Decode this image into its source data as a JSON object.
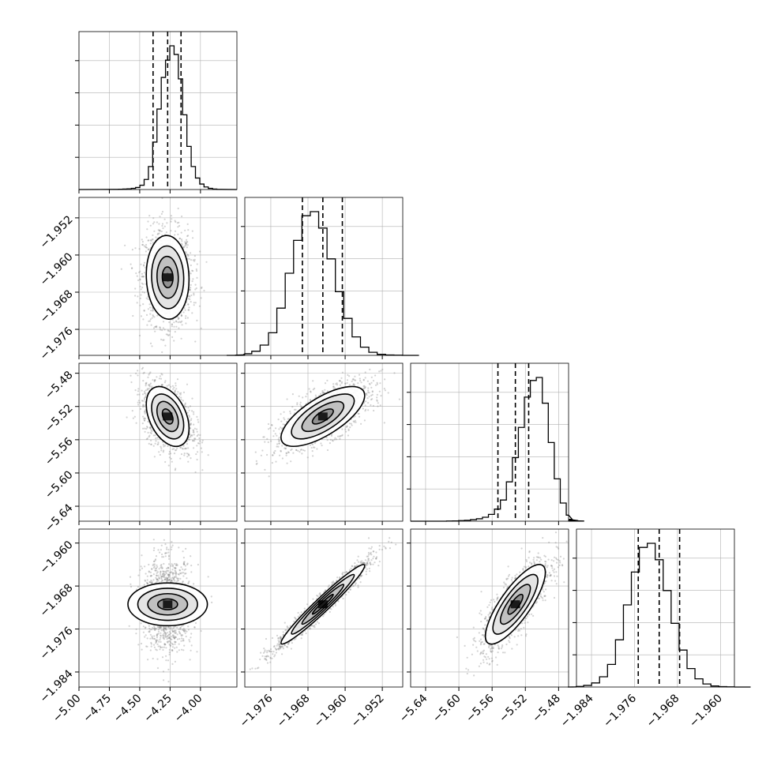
{
  "chart_data": {
    "type": "corner",
    "grid": true,
    "parameters": [
      {
        "index": 0,
        "range": [
          -5.0,
          -3.7
        ],
        "ticks": [
          -5.0,
          -4.75,
          -4.5,
          -4.25,
          -4.0
        ],
        "tick_labels": [
          "−5.00",
          "−4.75",
          "−4.50",
          "−4.25",
          "−4.00"
        ],
        "quantiles": [
          -4.39,
          -4.27,
          -4.16
        ]
      },
      {
        "index": 1,
        "range": [
          -1.9816,
          -1.9476
        ],
        "ticks": [
          -1.976,
          -1.968,
          -1.96,
          -1.952
        ],
        "tick_labels": [
          "−1.976",
          "−1.968",
          "−1.960",
          "−1.952"
        ],
        "quantiles": [
          -1.9692,
          -1.9648,
          -1.9606
        ]
      },
      {
        "index": 2,
        "range": [
          -5.658,
          -5.468
        ],
        "ticks": [
          -5.64,
          -5.6,
          -5.56,
          -5.52,
          -5.48
        ],
        "tick_labels": [
          "−5.64",
          "−5.60",
          "−5.56",
          "−5.52",
          "−5.48"
        ],
        "quantiles": [
          -5.553,
          -5.532,
          -5.516
        ]
      },
      {
        "index": 3,
        "range": [
          -1.9868,
          -1.9574
        ],
        "ticks": [
          -1.984,
          -1.976,
          -1.968,
          -1.96
        ],
        "tick_labels": [
          "−1.984",
          "−1.976",
          "−1.968",
          "−1.960"
        ],
        "quantiles": [
          -1.9753,
          -1.9714,
          -1.9676
        ]
      }
    ],
    "marginals": [
      {
        "param": 0,
        "counts": [
          1,
          2,
          3,
          5,
          8,
          14,
          30,
          70,
          160,
          330,
          560,
          780,
          900,
          1000,
          940,
          770,
          520,
          300,
          160,
          80,
          38,
          18,
          8,
          3,
          1
        ],
        "median": -4.27,
        "sd": 0.088
      },
      {
        "param": 1,
        "counts": [
          0,
          1,
          3,
          8,
          20,
          50,
          110,
          230,
          400,
          560,
          680,
          700,
          620,
          470,
          310,
          180,
          90,
          40,
          15,
          5,
          2,
          1,
          0,
          0,
          0
        ],
        "median": -1.9648,
        "sd": 0.0045
      },
      {
        "param": 2,
        "counts": [
          0,
          1,
          2,
          4,
          6,
          10,
          16,
          26,
          45,
          80,
          140,
          260,
          420,
          620,
          820,
          930,
          950,
          780,
          520,
          280,
          120,
          40,
          12,
          4,
          1
        ],
        "median": -5.532,
        "sd": 0.018
      },
      {
        "param": 3,
        "counts": [
          0,
          1,
          3,
          8,
          20,
          50,
          110,
          230,
          400,
          560,
          680,
          700,
          620,
          470,
          310,
          180,
          90,
          40,
          15,
          5,
          2,
          1,
          0,
          0,
          0
        ],
        "median": -1.9714,
        "sd": 0.0037
      }
    ],
    "pairs": [
      {
        "x_param": 0,
        "y_param": 1,
        "correlation": -0.05
      },
      {
        "x_param": 0,
        "y_param": 2,
        "correlation": -0.4
      },
      {
        "x_param": 1,
        "y_param": 2,
        "correlation": 0.7
      },
      {
        "x_param": 0,
        "y_param": 3,
        "correlation": 0.0
      },
      {
        "x_param": 1,
        "y_param": 3,
        "correlation": 0.97
      },
      {
        "x_param": 2,
        "y_param": 3,
        "correlation": 0.8
      }
    ],
    "contour_levels_sigma": [
      0.5,
      1.0,
      1.5,
      2.0
    ],
    "colors": {
      "line": "#000000",
      "grid": "#b0b0b0",
      "scatter": "#808080",
      "density_dark": "#000000"
    }
  }
}
